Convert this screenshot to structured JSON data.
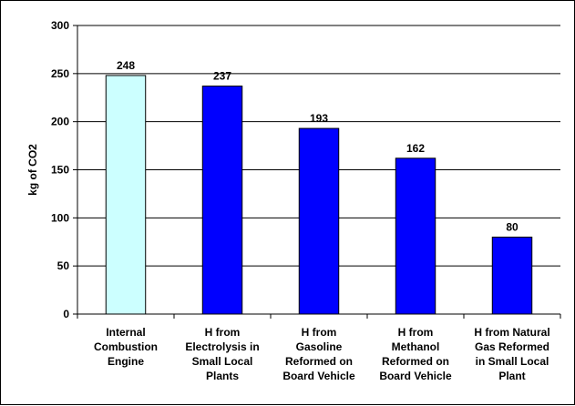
{
  "chart_data": {
    "type": "bar",
    "title": "",
    "xlabel": "",
    "ylabel": "kg of CO2",
    "ylim": [
      0,
      300
    ],
    "yticks": [
      0,
      50,
      100,
      150,
      200,
      250,
      300
    ],
    "grid": true,
    "categories": [
      [
        "Internal",
        "Combustion",
        "Engine"
      ],
      [
        "H from",
        "Electrolysis in",
        "Small Local",
        "Plants"
      ],
      [
        "H from",
        "Gasoline",
        "Reformed on",
        "Board Vehicle"
      ],
      [
        "H from",
        "Methanol",
        "Reformed on",
        "Board Vehicle"
      ],
      [
        "H from Natural",
        "Gas Reformed",
        "in Small Local",
        "Plant"
      ]
    ],
    "values": [
      248,
      237,
      193,
      162,
      80
    ],
    "bar_colors": [
      "#ccffff",
      "#0000ff",
      "#0000ff",
      "#0000ff",
      "#0000ff"
    ]
  }
}
